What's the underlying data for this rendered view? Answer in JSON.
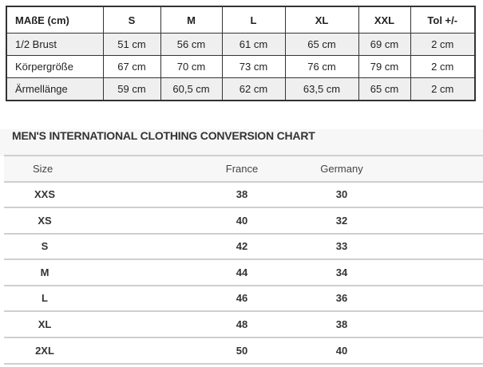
{
  "measurements": {
    "headers": [
      "MAßE (cm)",
      "S",
      "M",
      "L",
      "XL",
      "XXL",
      "Tol +/-"
    ],
    "rows": [
      [
        "1/2 Brust",
        "51 cm",
        "56 cm",
        "61 cm",
        "65 cm",
        "69 cm",
        "2 cm"
      ],
      [
        "Körpergröße",
        "67 cm",
        "70 cm",
        "73 cm",
        "76 cm",
        "79 cm",
        "2 cm"
      ],
      [
        "Ärmellänge",
        "59 cm",
        "60,5 cm",
        "62 cm",
        "63,5 cm",
        "65 cm",
        "2 cm"
      ]
    ]
  },
  "conversion": {
    "title": "MEN'S INTERNATIONAL CLOTHING CONVERSION CHART",
    "headers": [
      "Size",
      "France",
      "Germany"
    ],
    "rows": [
      [
        "XXS",
        "38",
        "30"
      ],
      [
        "XS",
        "40",
        "32"
      ],
      [
        "S",
        "42",
        "33"
      ],
      [
        "M",
        "44",
        "34"
      ],
      [
        "L",
        "46",
        "36"
      ],
      [
        "XL",
        "48",
        "38"
      ],
      [
        "2XL",
        "50",
        "40"
      ]
    ]
  }
}
